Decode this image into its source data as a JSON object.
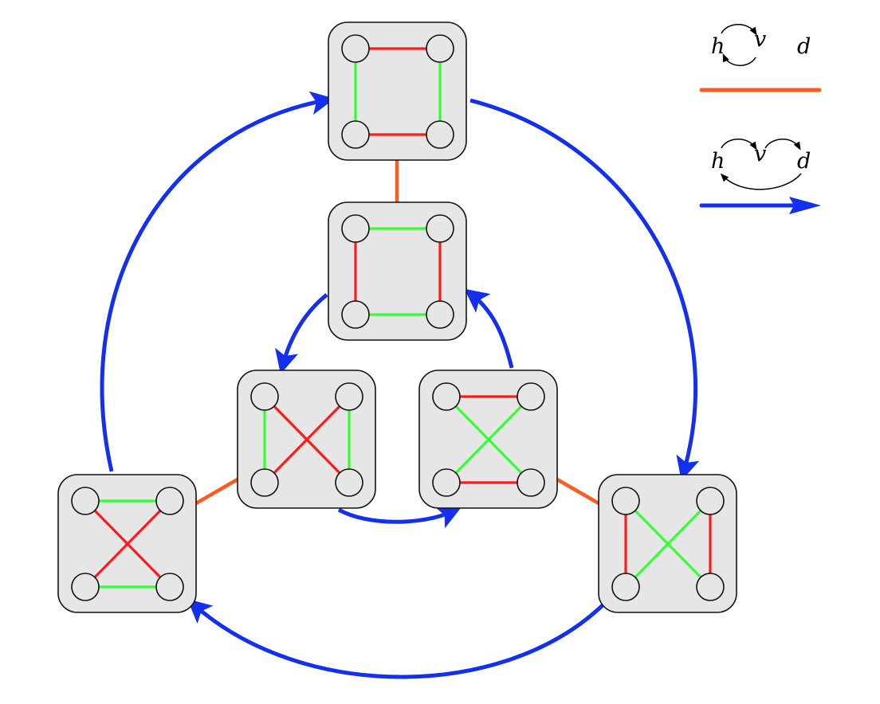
{
  "colors": {
    "red": "#ff1a1a",
    "green": "#33ff33",
    "orange": "#ff5a1f",
    "blue": "#1230ee",
    "box_fill": "#e6e6e6",
    "outline": "#111111"
  },
  "legend": {
    "swap_row": {
      "h": "h",
      "v": "v",
      "d": "d"
    },
    "cycle_row": {
      "h": "h",
      "v": "v",
      "d": "d"
    }
  },
  "graphs": [
    {
      "id": "top",
      "edges": [
        [
          "tl",
          "tr",
          "red"
        ],
        [
          "bl",
          "br",
          "red"
        ],
        [
          "tl",
          "bl",
          "green"
        ],
        [
          "tr",
          "br",
          "green"
        ]
      ]
    },
    {
      "id": "upper-middle",
      "edges": [
        [
          "tl",
          "tr",
          "green"
        ],
        [
          "bl",
          "br",
          "green"
        ],
        [
          "tl",
          "bl",
          "red"
        ],
        [
          "tr",
          "br",
          "red"
        ]
      ]
    },
    {
      "id": "middle-left",
      "edges": [
        [
          "tl",
          "bl",
          "green"
        ],
        [
          "tr",
          "br",
          "green"
        ],
        [
          "tl",
          "br",
          "red"
        ],
        [
          "tr",
          "bl",
          "red"
        ]
      ]
    },
    {
      "id": "middle-right",
      "edges": [
        [
          "tl",
          "tr",
          "red"
        ],
        [
          "bl",
          "br",
          "red"
        ],
        [
          "tl",
          "br",
          "green"
        ],
        [
          "tr",
          "bl",
          "green"
        ]
      ]
    },
    {
      "id": "bottom-left",
      "edges": [
        [
          "tl",
          "tr",
          "green"
        ],
        [
          "bl",
          "br",
          "green"
        ],
        [
          "tl",
          "br",
          "red"
        ],
        [
          "tr",
          "bl",
          "red"
        ]
      ]
    },
    {
      "id": "bottom-right",
      "edges": [
        [
          "tl",
          "bl",
          "red"
        ],
        [
          "tr",
          "br",
          "red"
        ],
        [
          "tl",
          "br",
          "green"
        ],
        [
          "tr",
          "bl",
          "green"
        ]
      ]
    }
  ],
  "swap_links": [
    [
      "top",
      "upper-middle"
    ],
    [
      "middle-left",
      "bottom-left"
    ],
    [
      "middle-right",
      "bottom-right"
    ]
  ],
  "cycle_arrows": [
    [
      "bottom-left",
      "top"
    ],
    [
      "top",
      "bottom-right"
    ],
    [
      "bottom-right",
      "bottom-left"
    ],
    [
      "upper-middle",
      "middle-left"
    ],
    [
      "middle-left",
      "middle-right"
    ],
    [
      "middle-right",
      "upper-middle"
    ]
  ]
}
